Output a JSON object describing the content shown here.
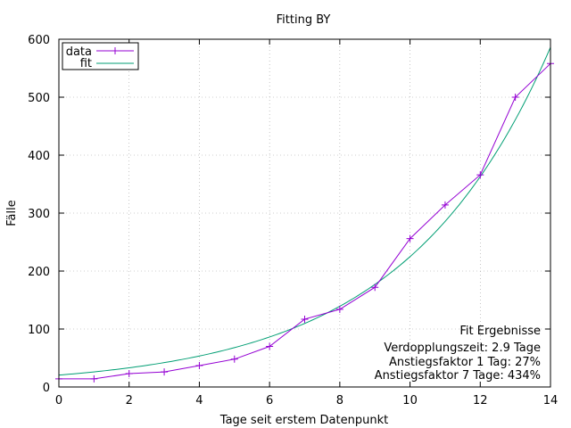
{
  "chart_data": {
    "type": "line",
    "title": "Fitting BY",
    "xlabel": "Tage seit erstem Datenpunkt",
    "ylabel": "Fälle",
    "xlim": [
      0,
      14
    ],
    "ylim": [
      0,
      600
    ],
    "x_ticks": [
      0,
      2,
      4,
      6,
      8,
      10,
      12,
      14
    ],
    "y_ticks": [
      0,
      100,
      200,
      300,
      400,
      500,
      600
    ],
    "grid": true,
    "legend_position": "top-left",
    "series": [
      {
        "name": "data",
        "color": "#9400d3",
        "marker": "plus",
        "x": [
          0,
          1,
          2,
          3,
          4,
          5,
          6,
          7,
          8,
          9,
          10,
          11,
          12,
          13,
          14
        ],
        "y": [
          14,
          14,
          23,
          26,
          37,
          48,
          70,
          117,
          134,
          172,
          256,
          314,
          366,
          500,
          558
        ]
      },
      {
        "name": "fit",
        "color": "#009e73",
        "function": {
          "a": 20.5,
          "b": 0.2395
        }
      }
    ],
    "annotations": [
      "Fit Ergebnisse",
      "Verdopplungszeit: 2.9 Tage",
      "Anstiegsfaktor 1 Tag: 27%",
      "Anstiegsfaktor 7 Tage: 434%"
    ]
  }
}
